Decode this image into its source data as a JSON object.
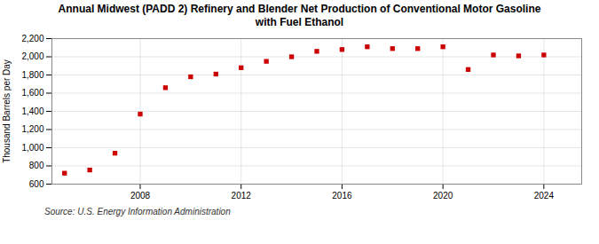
{
  "chart_data": {
    "type": "scatter",
    "title": "Annual Midwest (PADD 2) Refinery and Blender Net Production of Conventional Motor Gasoline\nwith Fuel Ethanol",
    "ylabel": "Thousand Barrels per Day",
    "source": "Source: U.S. Energy Information Administration",
    "x": [
      2005,
      2006,
      2007,
      2008,
      2009,
      2010,
      2011,
      2012,
      2013,
      2014,
      2015,
      2016,
      2017,
      2018,
      2019,
      2020,
      2021,
      2022,
      2023,
      2024
    ],
    "values": [
      720,
      755,
      940,
      1370,
      1660,
      1780,
      1810,
      1880,
      1950,
      2000,
      2060,
      2080,
      2110,
      2090,
      2090,
      2110,
      1860,
      2020,
      2010,
      2020
    ],
    "color": "#cc0000",
    "marker": "square",
    "xlim": [
      2004.5,
      2025.5
    ],
    "ylim": [
      600,
      2200
    ],
    "xticks": [
      2008,
      2012,
      2016,
      2020,
      2024
    ],
    "yticks": [
      600,
      800,
      {
        "value": 1000,
        "label": "1,000"
      },
      {
        "value": 1200,
        "label": "1,200"
      },
      {
        "value": 1400,
        "label": "1,400"
      },
      {
        "value": 1600,
        "label": "1,600"
      },
      {
        "value": 1800,
        "label": "1,800"
      },
      {
        "value": 2000,
        "label": "2,000"
      },
      {
        "value": 2200,
        "label": "2,200"
      }
    ],
    "grid": true
  }
}
